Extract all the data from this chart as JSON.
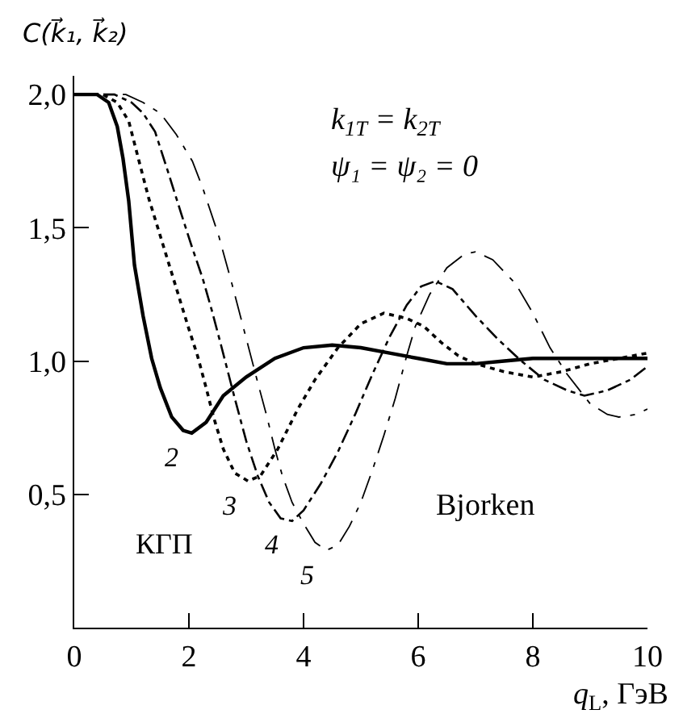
{
  "chart_data": {
    "type": "line",
    "ylabel": "C(k⃗₁, k⃗₂)",
    "xlabel": "q$_{L}$, ГэВ",
    "annotations": [
      "k$_{1T}$ = k$_{2T}$",
      "ψ₁ = ψ₂ = 0",
      "КГП",
      "Bjorken"
    ],
    "xlim": [
      0,
      10
    ],
    "ylim": [
      0,
      2.07
    ],
    "xticks": [
      0,
      2,
      4,
      6,
      8,
      10
    ],
    "yticks": [
      {
        "value": 0.5,
        "label": "0,5"
      },
      {
        "value": 1.0,
        "label": "1,0"
      },
      {
        "value": 1.5,
        "label": "1,5"
      },
      {
        "value": 2.0,
        "label": "2,0"
      }
    ],
    "grid": false,
    "legend": false,
    "marker": "none",
    "series": [
      {
        "name": "2",
        "color": "#000000",
        "line_style": "solid",
        "x": [
          0,
          0.4,
          0.6,
          0.75,
          0.85,
          0.95,
          1.05,
          1.2,
          1.35,
          1.5,
          1.7,
          1.9,
          2.05,
          2.3,
          2.6,
          3.0,
          3.5,
          4.0,
          4.5,
          5.0,
          5.5,
          6.0,
          6.5,
          7.0,
          7.5,
          8.0,
          9.0,
          10
        ],
        "values": [
          2.0,
          2.0,
          1.97,
          1.88,
          1.76,
          1.6,
          1.36,
          1.17,
          1.01,
          0.9,
          0.79,
          0.74,
          0.73,
          0.77,
          0.87,
          0.94,
          1.01,
          1.05,
          1.06,
          1.05,
          1.03,
          1.01,
          0.99,
          0.99,
          1.0,
          1.01,
          1.01,
          1.01
        ]
      },
      {
        "name": "3",
        "color": "#000000",
        "line_style": "dotted",
        "x": [
          0,
          0.5,
          0.75,
          0.95,
          1.13,
          1.3,
          1.5,
          1.7,
          1.87,
          2.0,
          2.15,
          2.3,
          2.43,
          2.6,
          2.8,
          3.03,
          3.25,
          3.55,
          3.9,
          4.2,
          4.6,
          5.0,
          5.4,
          5.8,
          6.1,
          6.4,
          6.7,
          7.0,
          7.5,
          8.0,
          8.5,
          9.0,
          9.5,
          10
        ],
        "values": [
          2.0,
          2.0,
          1.97,
          1.9,
          1.75,
          1.61,
          1.47,
          1.33,
          1.21,
          1.12,
          1.02,
          0.9,
          0.79,
          0.67,
          0.58,
          0.55,
          0.57,
          0.67,
          0.82,
          0.93,
          1.05,
          1.14,
          1.18,
          1.16,
          1.13,
          1.07,
          1.02,
          0.99,
          0.96,
          0.94,
          0.96,
          0.99,
          1.01,
          1.03
        ]
      },
      {
        "name": "4",
        "color": "#000000",
        "line_style": "dashdot",
        "x": [
          0,
          0.7,
          1.0,
          1.2,
          1.41,
          1.65,
          1.87,
          2.05,
          2.24,
          2.4,
          2.56,
          2.8,
          3.0,
          3.2,
          3.4,
          3.6,
          3.8,
          4.0,
          4.3,
          4.6,
          4.9,
          5.2,
          5.5,
          5.8,
          6.05,
          6.3,
          6.6,
          7.0,
          7.4,
          7.8,
          8.2,
          8.6,
          8.9,
          9.3,
          9.7,
          10
        ],
        "values": [
          2.0,
          2.0,
          1.97,
          1.93,
          1.86,
          1.7,
          1.55,
          1.43,
          1.31,
          1.19,
          1.06,
          0.86,
          0.7,
          0.57,
          0.47,
          0.41,
          0.4,
          0.44,
          0.54,
          0.66,
          0.8,
          0.95,
          1.09,
          1.21,
          1.28,
          1.3,
          1.27,
          1.17,
          1.08,
          1.0,
          0.93,
          0.89,
          0.87,
          0.89,
          0.93,
          0.98
        ]
      },
      {
        "name": "5",
        "color": "#000000",
        "line_style": "longdashdot",
        "x": [
          0,
          0.9,
          1.2,
          1.5,
          1.78,
          2.06,
          2.24,
          2.52,
          2.75,
          3.03,
          3.2,
          3.35,
          3.5,
          3.63,
          3.8,
          4.0,
          4.2,
          4.4,
          4.6,
          4.8,
          5.0,
          5.2,
          5.4,
          5.6,
          5.8,
          5.95,
          6.2,
          6.5,
          6.8,
          7.0,
          7.3,
          7.7,
          8.0,
          8.3,
          8.6,
          9.0,
          9.3,
          9.5,
          9.8,
          10
        ],
        "values": [
          2.0,
          2.0,
          1.97,
          1.93,
          1.85,
          1.75,
          1.65,
          1.47,
          1.29,
          1.06,
          0.92,
          0.8,
          0.67,
          0.57,
          0.47,
          0.39,
          0.32,
          0.29,
          0.31,
          0.38,
          0.47,
          0.59,
          0.72,
          0.86,
          1.02,
          1.13,
          1.25,
          1.35,
          1.4,
          1.41,
          1.38,
          1.29,
          1.18,
          1.05,
          0.95,
          0.84,
          0.8,
          0.79,
          0.8,
          0.82
        ]
      }
    ]
  }
}
